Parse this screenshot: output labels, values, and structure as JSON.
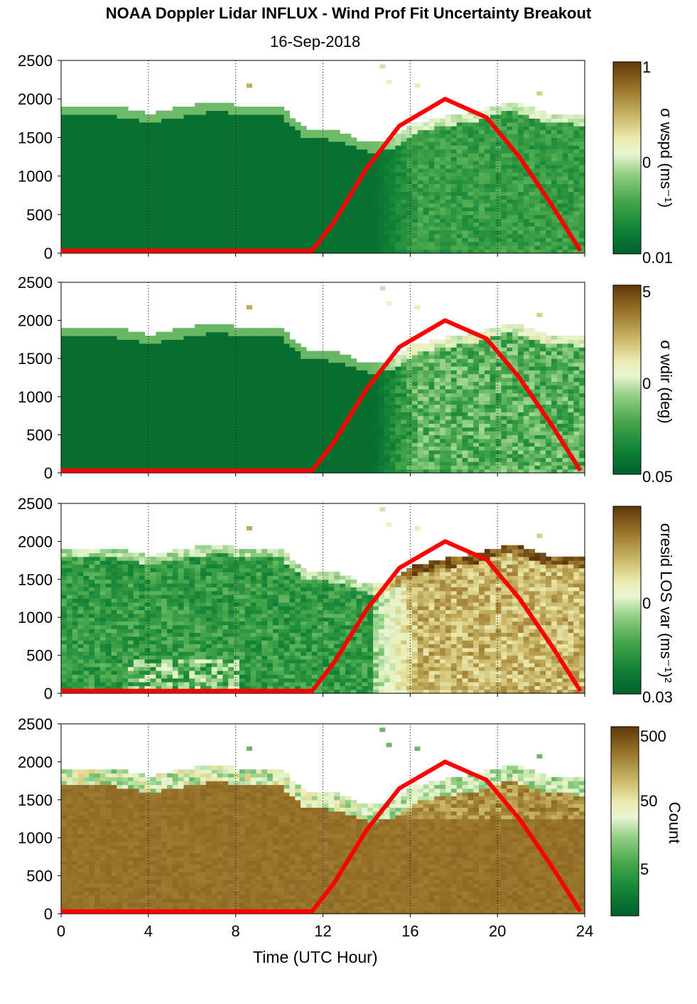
{
  "title": "NOAA Doppler Lidar INFLUX - Wind Prof Fit Uncertainty Breakout",
  "subtitle": "16-Sep-2018",
  "colors": {
    "colormap": [
      "#00602c",
      "#118236",
      "#47a74c",
      "#96d088",
      "#e8f6d2",
      "#ecebb1",
      "#c8b665",
      "#98742b",
      "#5f3809"
    ],
    "sun_curve": "#ff0000"
  },
  "chart_data": [
    {
      "type": "heatmap",
      "panel": 1,
      "colorbar_label": "σ wspd (ms⁻¹)",
      "colorbar_ticks": [
        "1",
        "0",
        "0.01"
      ],
      "x": {
        "label": "Time (UTC Hour)",
        "range": [
          0,
          24
        ],
        "ticks": [
          0,
          4,
          8,
          12,
          16,
          20,
          24
        ],
        "gridlines": "dotted"
      },
      "y": {
        "range": [
          0,
          2500
        ],
        "ticks": [
          0,
          500,
          1000,
          1500,
          2000,
          2500
        ]
      },
      "series": [
        {
          "type": "line",
          "x": [
            0,
            11.5,
            12.5,
            14,
            15.5,
            17.6,
            19.5,
            21,
            22.5,
            23.8
          ],
          "y": [
            30,
            30,
            400,
            1100,
            1650,
            2000,
            1760,
            1250,
            620,
            30
          ]
        }
      ]
    },
    {
      "type": "heatmap",
      "panel": 2,
      "colorbar_label": "σ wdir (deg)",
      "colorbar_ticks": [
        "5",
        "0",
        "0.05"
      ],
      "x": {
        "label": "Time (UTC Hour)",
        "range": [
          0,
          24
        ],
        "ticks": [
          0,
          4,
          8,
          12,
          16,
          20,
          24
        ],
        "gridlines": "dotted"
      },
      "y": {
        "range": [
          0,
          2500
        ],
        "ticks": [
          0,
          500,
          1000,
          1500,
          2000,
          2500
        ]
      },
      "series": [
        {
          "type": "line",
          "x": [
            0,
            11.5,
            12.5,
            14,
            15.5,
            17.6,
            19.5,
            21,
            22.5,
            23.8
          ],
          "y": [
            30,
            30,
            400,
            1100,
            1650,
            2000,
            1760,
            1250,
            620,
            30
          ]
        }
      ]
    },
    {
      "type": "heatmap",
      "panel": 3,
      "colorbar_label": "σresid LOS var (ms⁻¹)²",
      "colorbar_ticks": [
        "0",
        "0.03"
      ],
      "x": {
        "label": "Time (UTC Hour)",
        "range": [
          0,
          24
        ],
        "ticks": [
          0,
          4,
          8,
          12,
          16,
          20,
          24
        ],
        "gridlines": "dotted"
      },
      "y": {
        "range": [
          0,
          2500
        ],
        "ticks": [
          0,
          500,
          1000,
          1500,
          2000,
          2500
        ]
      },
      "series": [
        {
          "type": "line",
          "x": [
            0,
            11.5,
            12.5,
            14,
            15.5,
            17.6,
            19.5,
            21,
            22.5,
            23.8
          ],
          "y": [
            30,
            30,
            400,
            1100,
            1650,
            2000,
            1760,
            1250,
            620,
            30
          ]
        }
      ]
    },
    {
      "type": "heatmap",
      "panel": 4,
      "colorbar_label": "Count",
      "colorbar_ticks": [
        "500",
        "50",
        "5"
      ],
      "x": {
        "label": "Time (UTC Hour)",
        "range": [
          0,
          24
        ],
        "ticks": [
          0,
          4,
          8,
          12,
          16,
          20,
          24
        ],
        "gridlines": "dotted"
      },
      "y": {
        "range": [
          0,
          2500
        ],
        "ticks": [
          0,
          500,
          1000,
          1500,
          2000,
          2500
        ]
      },
      "series": [
        {
          "type": "line",
          "x": [
            0,
            11.5,
            12.5,
            14,
            15.5,
            17.6,
            19.5,
            21,
            22.5,
            23.8
          ],
          "y": [
            30,
            30,
            400,
            1100,
            1650,
            2000,
            1760,
            1250,
            620,
            30
          ]
        }
      ]
    }
  ]
}
